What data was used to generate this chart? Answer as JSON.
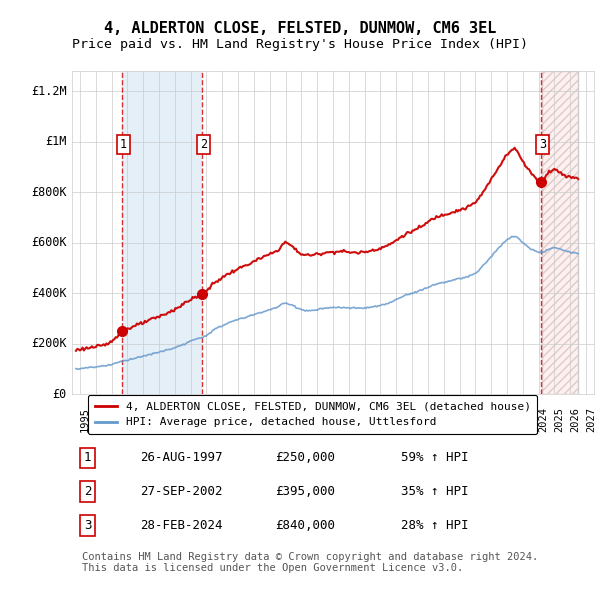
{
  "title": "4, ALDERTON CLOSE, FELSTED, DUNMOW, CM6 3EL",
  "subtitle": "Price paid vs. HM Land Registry's House Price Index (HPI)",
  "ylabel_ticks": [
    "£0",
    "£200K",
    "£400K",
    "£600K",
    "£800K",
    "£1M",
    "£1.2M"
  ],
  "ytick_values": [
    0,
    200000,
    400000,
    600000,
    800000,
    1000000,
    1200000
  ],
  "ylim": [
    0,
    1280000
  ],
  "xlim_start": 1994.5,
  "xlim_end": 2027.5,
  "transactions": [
    {
      "date_year": 1997.65,
      "price": 250000,
      "label": "1"
    },
    {
      "date_year": 2002.74,
      "price": 395000,
      "label": "2"
    },
    {
      "date_year": 2024.16,
      "price": 840000,
      "label": "3"
    }
  ],
  "transaction_table": [
    {
      "num": "1",
      "date": "26-AUG-1997",
      "price": "£250,000",
      "hpi": "59% ↑ HPI"
    },
    {
      "num": "2",
      "date": "27-SEP-2002",
      "price": "£395,000",
      "hpi": "35% ↑ HPI"
    },
    {
      "num": "3",
      "date": "28-FEB-2024",
      "price": "£840,000",
      "hpi": "28% ↑ HPI"
    }
  ],
  "legend_entries": [
    "4, ALDERTON CLOSE, FELSTED, DUNMOW, CM6 3EL (detached house)",
    "HPI: Average price, detached house, Uttlesford"
  ],
  "footer_text": "Contains HM Land Registry data © Crown copyright and database right 2024.\nThis data is licensed under the Open Government Licence v3.0.",
  "line_color_red": "#cc0000",
  "line_color_blue": "#6699cc",
  "shade_color_blue": "#cce0f0",
  "shade_color_red": "#ffcccc",
  "dashed_line_color": "#cc0000",
  "background_color": "#ffffff",
  "grid_color": "#cccccc",
  "title_fontsize": 11,
  "subtitle_fontsize": 9.5,
  "tick_fontsize": 8.5
}
